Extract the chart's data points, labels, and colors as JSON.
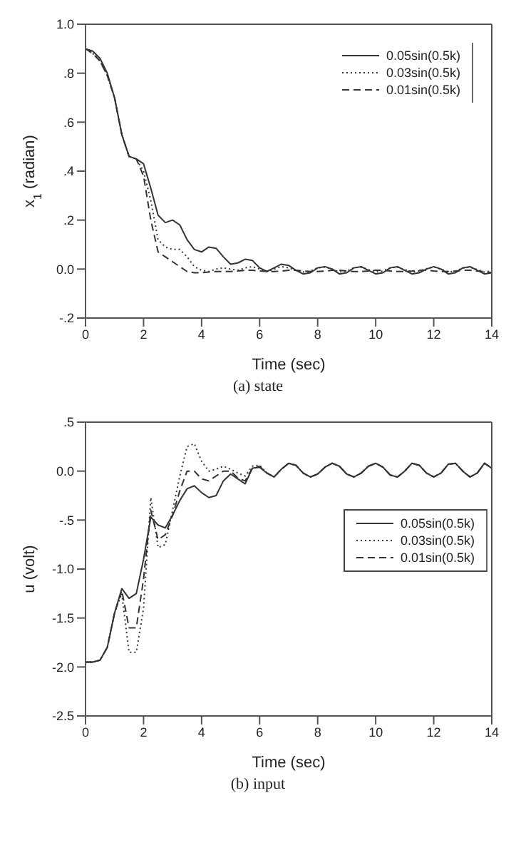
{
  "chart_data": [
    {
      "type": "line",
      "xlabel": "Time (sec)",
      "ylabel": "x$_{1}$ (radian)",
      "annotations": [
        "(a) state"
      ],
      "legend": "top right",
      "xlim": [
        0,
        14
      ],
      "xticks": [
        0,
        2,
        4,
        6,
        8,
        10,
        12,
        14
      ],
      "ylim": [
        -0.2,
        1.0
      ],
      "yticks": [
        {
          "value": -0.2,
          "label": "-.2"
        },
        {
          "value": 0,
          "label": "0.0"
        },
        {
          "value": 0.2,
          "label": ".2"
        },
        {
          "value": 0.4,
          "label": ".4"
        },
        {
          "value": 0.6,
          "label": ".6"
        },
        {
          "value": 0.8,
          "label": ".8"
        },
        {
          "value": 1.0,
          "label": "1.0"
        }
      ],
      "x": [
        0,
        0.25,
        0.5,
        0.75,
        1,
        1.25,
        1.5,
        1.75,
        2,
        2.25,
        2.5,
        2.75,
        3,
        3.25,
        3.5,
        3.75,
        4,
        4.25,
        4.5,
        4.75,
        5,
        5.25,
        5.5,
        5.75,
        6,
        6.25,
        6.5,
        6.75,
        7,
        7.25,
        7.5,
        7.75,
        8,
        8.25,
        8.5,
        8.75,
        9,
        9.25,
        9.5,
        9.75,
        10,
        10.25,
        10.5,
        10.75,
        11,
        11.25,
        11.5,
        11.75,
        12,
        12.25,
        12.5,
        12.75,
        13,
        13.25,
        13.5,
        13.75,
        14
      ],
      "series": [
        {
          "name": "0.05sin(0.5k)",
          "color": "#333333",
          "line_style": "solid",
          "values": [
            0.9,
            0.89,
            0.86,
            0.8,
            0.7,
            0.55,
            0.46,
            0.45,
            0.43,
            0.33,
            0.22,
            0.19,
            0.2,
            0.18,
            0.12,
            0.08,
            0.07,
            0.09,
            0.085,
            0.05,
            0.02,
            0.025,
            0.04,
            0.035,
            0.005,
            -0.01,
            0.005,
            0.02,
            0.015,
            -0.005,
            -0.02,
            -0.015,
            0.005,
            0.01,
            0.0,
            -0.02,
            -0.015,
            0.005,
            0.01,
            -0.005,
            -0.02,
            -0.015,
            0.005,
            0.01,
            -0.005,
            -0.02,
            -0.015,
            0.0,
            0.01,
            0.0,
            -0.02,
            -0.015,
            0.005,
            0.01,
            -0.005,
            -0.02,
            -0.015
          ]
        },
        {
          "name": "0.03sin(0.5k)",
          "color": "#333333",
          "line_style": "dotted",
          "values": [
            0.9,
            0.88,
            0.85,
            0.79,
            0.7,
            0.55,
            0.46,
            0.45,
            0.4,
            0.28,
            0.12,
            0.09,
            0.08,
            0.08,
            0.05,
            0.01,
            -0.005,
            -0.01,
            0.0,
            0.005,
            0.0,
            -0.005,
            0.005,
            0.01,
            0.0,
            -0.01,
            0.0,
            0.01,
            0.005,
            -0.005,
            -0.012,
            -0.008,
            0.005,
            0.008,
            0.0,
            -0.012,
            -0.008,
            0.005,
            0.008,
            -0.002,
            -0.012,
            -0.008,
            0.005,
            0.008,
            -0.002,
            -0.012,
            -0.008,
            0.002,
            0.008,
            0.0,
            -0.012,
            -0.008,
            0.004,
            0.008,
            -0.002,
            -0.012,
            -0.008
          ]
        },
        {
          "name": "0.01sin(0.5k)",
          "color": "#333333",
          "line_style": "dashed",
          "values": [
            0.9,
            0.88,
            0.85,
            0.79,
            0.7,
            0.55,
            0.46,
            0.45,
            0.38,
            0.2,
            0.07,
            0.05,
            0.03,
            0.01,
            -0.01,
            -0.015,
            -0.015,
            -0.012,
            -0.01,
            -0.01,
            -0.01,
            -0.008,
            -0.005,
            -0.005,
            -0.008,
            -0.01,
            -0.01,
            -0.008,
            -0.005,
            -0.005,
            -0.008,
            -0.01,
            -0.01,
            -0.008,
            -0.005,
            -0.005,
            -0.008,
            -0.01,
            -0.01,
            -0.008,
            -0.005,
            -0.005,
            -0.008,
            -0.01,
            -0.01,
            -0.008,
            -0.005,
            -0.005,
            -0.008,
            -0.01,
            -0.01,
            -0.008,
            -0.005,
            -0.005,
            -0.008,
            -0.01,
            -0.015
          ]
        }
      ]
    },
    {
      "type": "line",
      "xlabel": "Time (sec)",
      "ylabel": "u (volt)",
      "annotations": [
        "(b) input"
      ],
      "legend": "right",
      "xlim": [
        0,
        14
      ],
      "xticks": [
        0,
        2,
        4,
        6,
        8,
        10,
        12,
        14
      ],
      "ylim": [
        -2.5,
        0.5
      ],
      "yticks": [
        {
          "value": -2.5,
          "label": "-2.5"
        },
        {
          "value": -2,
          "label": "-2.0"
        },
        {
          "value": -1.5,
          "label": "-1.5"
        },
        {
          "value": -1,
          "label": "-1.0"
        },
        {
          "value": -0.5,
          "label": "-.5"
        },
        {
          "value": 0,
          "label": "0.0"
        },
        {
          "value": 0.5,
          "label": ".5"
        }
      ],
      "x": [
        0,
        0.25,
        0.5,
        0.75,
        1,
        1.25,
        1.5,
        1.75,
        2,
        2.25,
        2.5,
        2.75,
        3,
        3.25,
        3.5,
        3.75,
        4,
        4.25,
        4.5,
        4.75,
        5,
        5.25,
        5.5,
        5.75,
        6,
        6.25,
        6.5,
        6.75,
        7,
        7.25,
        7.5,
        7.75,
        8,
        8.25,
        8.5,
        8.75,
        9,
        9.25,
        9.5,
        9.75,
        10,
        10.25,
        10.5,
        10.75,
        11,
        11.25,
        11.5,
        11.75,
        12,
        12.25,
        12.5,
        12.75,
        13,
        13.25,
        13.5,
        13.75,
        14
      ],
      "series": [
        {
          "name": "0.05sin(0.5k)",
          "color": "#333333",
          "line_style": "solid",
          "values": [
            -1.95,
            -1.95,
            -1.93,
            -1.8,
            -1.45,
            -1.2,
            -1.3,
            -1.25,
            -0.9,
            -0.47,
            -0.55,
            -0.58,
            -0.45,
            -0.3,
            -0.18,
            -0.15,
            -0.22,
            -0.27,
            -0.25,
            -0.1,
            -0.03,
            -0.08,
            -0.13,
            0.03,
            0.04,
            -0.02,
            -0.06,
            0.02,
            0.08,
            0.06,
            -0.02,
            -0.06,
            -0.03,
            0.04,
            0.08,
            0.05,
            -0.03,
            -0.06,
            -0.02,
            0.05,
            0.08,
            0.04,
            -0.04,
            -0.06,
            0.0,
            0.08,
            0.06,
            -0.02,
            -0.06,
            -0.02,
            0.07,
            0.08,
            0.0,
            -0.06,
            -0.02,
            0.08,
            0.03
          ]
        },
        {
          "name": "0.03sin(0.5k)",
          "color": "#333333",
          "line_style": "dotted",
          "values": [
            -1.95,
            -1.95,
            -1.93,
            -1.8,
            -1.45,
            -1.25,
            -1.85,
            -1.85,
            -1.4,
            -0.27,
            -0.78,
            -0.75,
            -0.4,
            -0.05,
            0.25,
            0.28,
            0.1,
            0.0,
            0.02,
            0.05,
            0.02,
            -0.02,
            -0.05,
            0.05,
            0.06,
            -0.02,
            -0.06,
            0.02,
            0.08,
            0.06,
            -0.02,
            -0.06,
            -0.03,
            0.04,
            0.08,
            0.05,
            -0.03,
            -0.06,
            -0.02,
            0.05,
            0.08,
            0.04,
            -0.04,
            -0.06,
            0.0,
            0.08,
            0.06,
            -0.02,
            -0.06,
            -0.02,
            0.07,
            0.08,
            0.0,
            -0.06,
            -0.02,
            0.08,
            0.03
          ]
        },
        {
          "name": "0.01sin(0.5k)",
          "color": "#333333",
          "line_style": "dashed",
          "values": [
            -1.95,
            -1.95,
            -1.93,
            -1.8,
            -1.45,
            -1.22,
            -1.6,
            -1.6,
            -1.1,
            -0.4,
            -0.7,
            -0.65,
            -0.45,
            -0.2,
            0.0,
            0.0,
            -0.08,
            -0.1,
            -0.05,
            0.0,
            0.0,
            -0.07,
            -0.1,
            0.03,
            0.05,
            -0.02,
            -0.06,
            0.02,
            0.08,
            0.06,
            -0.02,
            -0.06,
            -0.03,
            0.04,
            0.08,
            0.05,
            -0.03,
            -0.06,
            -0.02,
            0.05,
            0.08,
            0.04,
            -0.04,
            -0.06,
            0.0,
            0.08,
            0.06,
            -0.02,
            -0.06,
            -0.02,
            0.07,
            0.08,
            0.0,
            -0.06,
            -0.02,
            0.08,
            0.03
          ]
        }
      ]
    }
  ]
}
